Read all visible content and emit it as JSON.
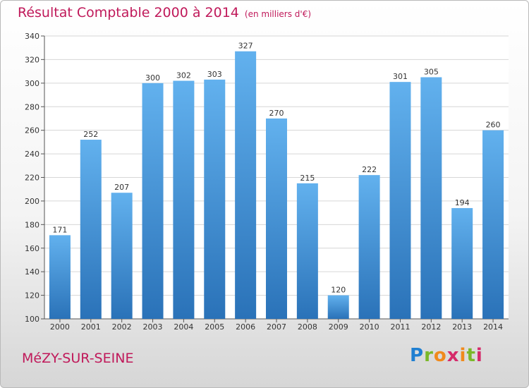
{
  "title": "Résultat Comptable 2000 à 2014",
  "title_unit": "(en milliers d'€)",
  "city": "MéZY-SUR-SEINE",
  "logo": {
    "text": "Proxiti",
    "colors": [
      "#1f7fd1",
      "#f08a1c",
      "#7ab829",
      "#d52a6a"
    ]
  },
  "colors": {
    "bar": "#3a8fd8",
    "bar_light": "#62b1ee",
    "bar_dark": "#2a72b8",
    "accent": "#c0195a",
    "grid": "#d6d6d6"
  },
  "chart_data": {
    "type": "bar",
    "categories": [
      "2000",
      "2001",
      "2002",
      "2003",
      "2004",
      "2005",
      "2006",
      "2007",
      "2008",
      "2009",
      "2010",
      "2011",
      "2012",
      "2013",
      "2014"
    ],
    "values": [
      171,
      252,
      207,
      300,
      302,
      303,
      327,
      270,
      215,
      120,
      222,
      301,
      305,
      194,
      260
    ],
    "ylim": [
      100,
      340
    ],
    "yticks": [
      100,
      120,
      140,
      160,
      180,
      200,
      220,
      240,
      260,
      280,
      300,
      320,
      340
    ],
    "grid": true,
    "data_labels": true
  }
}
